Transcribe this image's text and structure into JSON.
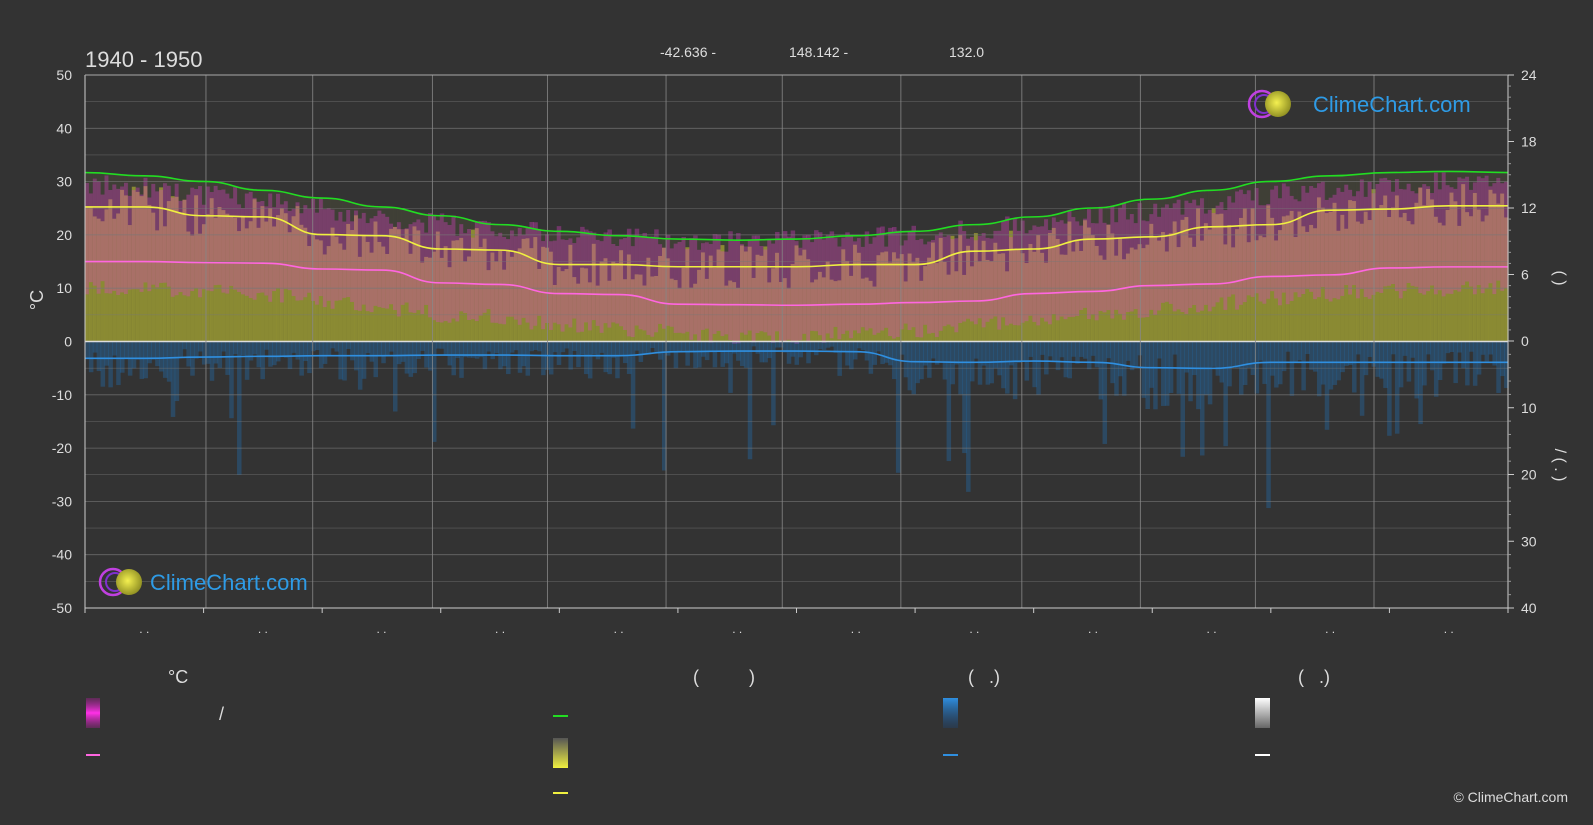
{
  "header": {
    "period": "1940 - 1950",
    "lat": "-42.636 -",
    "lon": "148.142 -",
    "elevation": "132.0"
  },
  "brand": {
    "logo_text": "ClimeChart.com",
    "copyright": "© ClimeChart.com"
  },
  "legend": {
    "temperature_heading": "°C",
    "col2_heading": "(          )",
    "col3_heading": "(   .)",
    "col4_heading": "(   .)",
    "temp_range_sep": "/"
  },
  "colors": {
    "background": "#333333",
    "temp_fill": "#e040c8",
    "temp_line": "#ff66e0",
    "daylight_line": "#22dd22",
    "sunshine_fill": "#c8c832",
    "sunshine_line": "#f0f040",
    "precip_fill": "#1e78c8",
    "precip_line": "#2f8fe0",
    "snow_line": "#ffffff",
    "brand_blue": "#2e9be6"
  },
  "chart_data": {
    "type": "line",
    "ylabel_left": "°C",
    "ylim_left": [
      -50,
      50
    ],
    "yticks_left": [
      50,
      40,
      30,
      20,
      10,
      0,
      -10,
      -20,
      -30,
      -40,
      -50
    ],
    "yticks_right_top": [
      24,
      18,
      12,
      6,
      0
    ],
    "yticks_right_bottom": [
      10,
      20,
      30,
      40
    ],
    "month_tick_labels": [
      ". .",
      ". .",
      ". .",
      ". .",
      ". .",
      ". .",
      ". .",
      ". .",
      ". .",
      ". .",
      ". .",
      ". ."
    ],
    "right_axis_label_top": "(     )",
    "right_axis_label_bottom": "/          (  .  )",
    "grid": true,
    "x": [
      0,
      0.5,
      1,
      1.5,
      2,
      2.5,
      3,
      3.5,
      4,
      4.5,
      5,
      5.5,
      6,
      6.5,
      7,
      7.5,
      8,
      8.5,
      9,
      9.5,
      10,
      10.5,
      11,
      11.5,
      12
    ],
    "series": [
      {
        "key": "daylight_hours",
        "axis": "right_hours",
        "values": [
          15.2,
          14.9,
          14.4,
          13.6,
          12.9,
          12.1,
          11.3,
          10.5,
          9.9,
          9.5,
          9.2,
          9.1,
          9.2,
          9.5,
          9.9,
          10.5,
          11.2,
          12.0,
          12.8,
          13.6,
          14.4,
          14.9,
          15.2,
          15.3,
          15.2
        ]
      },
      {
        "key": "sunshine_hours",
        "axis": "right_hours",
        "values": [
          12.1,
          12.1,
          11.3,
          11.2,
          9.6,
          9.5,
          8.3,
          8.2,
          6.9,
          6.9,
          6.7,
          6.7,
          6.7,
          6.9,
          6.9,
          8.1,
          8.3,
          9.2,
          9.4,
          10.3,
          10.5,
          11.8,
          11.9,
          12.2,
          12.2
        ]
      },
      {
        "key": "mean_daily_temperature",
        "axis": "left_celsius",
        "values": [
          15.0,
          15.0,
          14.8,
          14.7,
          13.6,
          13.4,
          11.0,
          10.7,
          9.0,
          8.8,
          7.0,
          6.9,
          6.8,
          7.0,
          7.3,
          7.6,
          9.0,
          9.4,
          10.5,
          10.8,
          12.2,
          12.5,
          13.8,
          14.0,
          14.0
        ]
      },
      {
        "key": "precipitation_mm",
        "axis": "right_mm",
        "values": [
          2.6,
          2.6,
          2.4,
          2.3,
          2.2,
          2.2,
          2.1,
          2.1,
          2.2,
          2.2,
          1.6,
          1.5,
          1.5,
          1.6,
          3.1,
          3.2,
          3.0,
          3.2,
          4.0,
          4.1,
          3.2,
          3.2,
          3.2,
          3.2,
          3.2
        ]
      }
    ],
    "band_max_temperature": [
      29.5,
      29.0,
      27.5,
      26.5,
      25.0,
      23.5,
      22.0,
      21.0,
      20.0,
      19.5,
      19.0,
      18.8,
      19.0,
      19.5,
      20.0,
      21.0,
      22.0,
      23.5,
      24.5,
      26.0,
      27.5,
      28.5,
      29.5,
      29.8,
      29.5
    ],
    "band_min_temperature": [
      10.0,
      10.0,
      9.5,
      9.0,
      7.5,
      6.5,
      5.0,
      4.5,
      3.0,
      2.5,
      1.5,
      1.0,
      1.0,
      1.5,
      2.0,
      3.0,
      4.0,
      5.0,
      6.0,
      7.0,
      8.0,
      9.0,
      9.5,
      10.0,
      10.0
    ]
  }
}
